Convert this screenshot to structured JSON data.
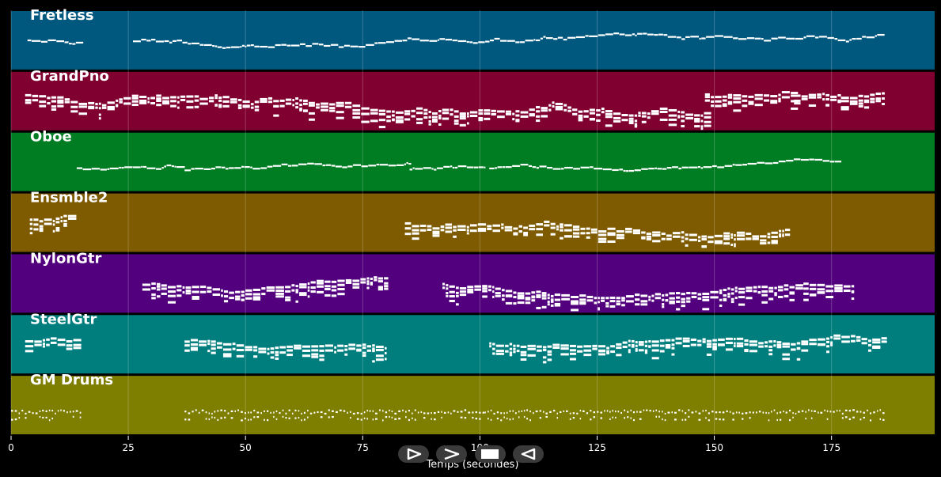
{
  "chart_data": {
    "type": "piano-roll",
    "xlabel": "Temps (secondes)",
    "xlim": [
      0,
      197
    ],
    "xticks": [
      0,
      25,
      50,
      75,
      100,
      125,
      150,
      175
    ],
    "grid": true,
    "tracks": [
      {
        "name": "Fretless",
        "color": "#00587f",
        "style": "melody",
        "pitch_mean": 0.3,
        "pitch_var": 0.12,
        "segments": [
          [
            3.5,
            15
          ],
          [
            26,
            185
          ]
        ]
      },
      {
        "name": "GrandPno",
        "color": "#800030",
        "style": "chords",
        "pitch_mean": 0.4,
        "pitch_var": 0.15,
        "segments": [
          [
            3,
            148
          ],
          [
            148,
            167
          ],
          [
            167,
            177
          ],
          [
            177,
            186
          ]
        ]
      },
      {
        "name": "Oboe",
        "color": "#007d22",
        "style": "melody",
        "pitch_mean": 0.52,
        "pitch_var": 0.08,
        "segments": [
          [
            14,
            37
          ],
          [
            37,
            85
          ],
          [
            85,
            101
          ],
          [
            102,
            177
          ]
        ]
      },
      {
        "name": "Ensmble2",
        "color": "#7e5a00",
        "style": "chords",
        "pitch_mean": 0.55,
        "pitch_var": 0.15,
        "segments": [
          [
            4,
            14
          ],
          [
            84,
            166
          ]
        ]
      },
      {
        "name": "NylonGtr",
        "color": "#52007d",
        "style": "chords",
        "pitch_mean": 0.55,
        "pitch_var": 0.1,
        "segments": [
          [
            28,
            80
          ],
          [
            92,
            169
          ],
          [
            169,
            180
          ]
        ]
      },
      {
        "name": "SteelGtr",
        "color": "#007e7e",
        "style": "chords",
        "pitch_mean": 0.5,
        "pitch_var": 0.1,
        "segments": [
          [
            3,
            15
          ],
          [
            37,
            80
          ],
          [
            102,
            186
          ]
        ]
      },
      {
        "name": "GM Drums",
        "color": "#7e7e00",
        "style": "drums",
        "pitch_mean": 0.55,
        "pitch_var": 0.15,
        "segments": [
          [
            0,
            15
          ],
          [
            37,
            101
          ],
          [
            101,
            186
          ]
        ]
      }
    ]
  },
  "controls": [
    {
      "name": "play-button",
      "icon": "play-outline-icon"
    },
    {
      "name": "forward-button",
      "icon": "chevron-right-icon"
    },
    {
      "name": "stop-button",
      "icon": "stop-icon"
    },
    {
      "name": "back-button",
      "icon": "triangle-left-icon"
    }
  ]
}
